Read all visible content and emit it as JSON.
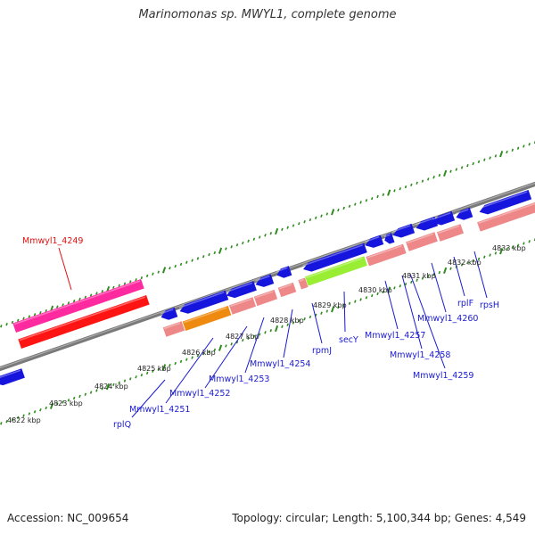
{
  "title": "Marinomonas sp. MWYL1, complete genome",
  "footer": {
    "accession": "Accession: NC_009654",
    "topology": "Topology: circular; Length: 5,100,344 bp; Genes: 4,549"
  },
  "colors": {
    "backbone": "#808080",
    "tick": "#2e8b1e",
    "cds": "#1515dd",
    "rrna": "#ff1414",
    "trna": "#ff2aa0",
    "segment_salmon": "#ee8888",
    "segment_orange": "#ee8a10",
    "segment_green": "#99ee33",
    "gene_label_blue": "#1a1ad0",
    "gene_label_red": "#dd1111"
  },
  "kbp_labels": [
    "4822 kbp",
    "4823 kbp",
    "4824 kbp",
    "4825 kbp",
    "4826 kbp",
    "4827 kbp",
    "4828 kbp",
    "4829 kbp",
    "4830 kbp",
    "4831 kbp",
    "4832 kbp",
    "4833 kbp"
  ],
  "gene_labels": [
    "Mmwyl1_4249",
    "rplQ",
    "Mmwyl1_4251",
    "Mmwyl1_4252",
    "Mmwyl1_4253",
    "Mmwyl1_4254",
    "rpmJ",
    "secY",
    "Mmwyl1_4257",
    "Mmwyl1_4258",
    "Mmwyl1_4259",
    "Mmwyl1_4260",
    "rplF",
    "rpsH"
  ]
}
